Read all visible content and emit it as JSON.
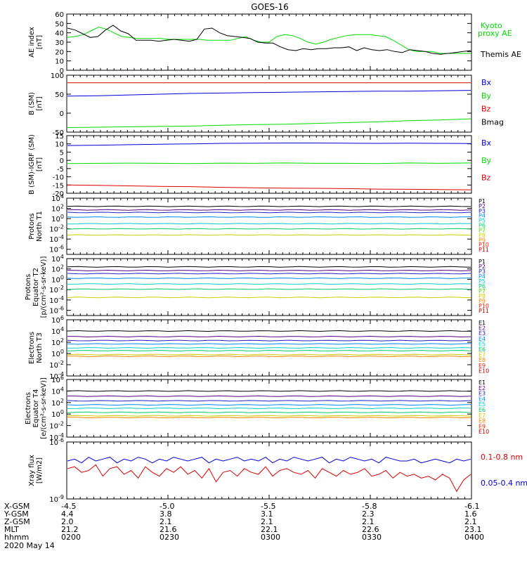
{
  "title": "GOES-16",
  "colors": {
    "black": "#000000",
    "green": "#00dd00",
    "red": "#dd0000",
    "blue": "#0000dd"
  },
  "chart_data": [
    {
      "type": "line",
      "ylabel": [
        "AE index",
        "[nT]"
      ],
      "ylim": [
        0,
        60
      ],
      "yticks": [
        "0",
        "10",
        "20",
        "30",
        "40",
        "50",
        "60"
      ],
      "series": [
        {
          "name": "Kyoto proxy AE",
          "color": "#00dd00",
          "values": [
            35,
            36,
            38,
            42,
            46,
            44,
            40,
            36,
            35,
            34,
            34,
            34,
            34,
            33,
            33,
            33,
            33,
            33,
            32,
            32,
            32,
            32,
            34,
            36,
            32,
            30,
            30,
            36,
            38,
            37,
            34,
            30,
            28,
            30,
            33,
            35,
            37,
            38,
            38,
            38,
            37,
            36,
            32,
            27,
            22,
            20,
            20,
            20,
            18,
            18,
            18,
            18,
            18
          ]
        },
        {
          "name": "Themis AE",
          "color": "#000000",
          "values": [
            45,
            43,
            39,
            35,
            36,
            43,
            48,
            42,
            39,
            32,
            32,
            32,
            31,
            32,
            33,
            32,
            31,
            33,
            44,
            45,
            40,
            37,
            36,
            35,
            34,
            30,
            29,
            29,
            25,
            22,
            21,
            23,
            22,
            23,
            23,
            24,
            24,
            25,
            21,
            24,
            22,
            21,
            22,
            20,
            19,
            22,
            21,
            20,
            18,
            17,
            18,
            19,
            20,
            21
          ]
        }
      ]
    },
    {
      "type": "line",
      "ylabel": [
        "B (SM)",
        "[nT]"
      ],
      "ylim": [
        -50,
        100
      ],
      "yticks": [
        "-50",
        "0",
        "50",
        "100"
      ],
      "series": [
        {
          "name": "Bx",
          "color": "#0000dd",
          "values": [
            45,
            46,
            48,
            50,
            52,
            53,
            54,
            55,
            56,
            57,
            58,
            58,
            59,
            60
          ]
        },
        {
          "name": "By",
          "color": "#00dd00",
          "values": [
            -38,
            -37,
            -36,
            -35,
            -34,
            -32,
            -30,
            -29,
            -27,
            -25,
            -23,
            -20,
            -18,
            -15
          ]
        },
        {
          "name": "Bz",
          "color": "#dd0000",
          "values": [
            80,
            80,
            80,
            80,
            80,
            80,
            80,
            80,
            80,
            80,
            80,
            80,
            80,
            80
          ]
        },
        {
          "name": "Bmag",
          "color": "#000000",
          "values": []
        }
      ]
    },
    {
      "type": "line",
      "ylabel": [
        "B (SM)-IGRF (SM)",
        "[nT]"
      ],
      "ylim": [
        -20,
        15
      ],
      "yticks": [
        "-20",
        "-15",
        "-10",
        "-5",
        "0",
        "5",
        "10",
        "15"
      ],
      "series": [
        {
          "name": "Bx",
          "color": "#0000dd",
          "values": [
            9,
            9.2,
            9.5,
            9.8,
            10,
            10.3,
            10.4,
            10.5,
            10.5,
            10.4,
            10.3,
            10.4,
            10.3,
            10.2
          ]
        },
        {
          "name": "By",
          "color": "#00dd00",
          "values": [
            -2,
            -1.8,
            -1.7,
            -1.8,
            -2,
            -1.7,
            -1.8,
            -1.6,
            -1.8,
            -1.8,
            -2,
            -1.6,
            -1.8,
            -1.6
          ]
        },
        {
          "name": "Bz",
          "color": "#dd0000",
          "values": [
            -15,
            -15.2,
            -15.5,
            -15.8,
            -16,
            -16.4,
            -16.7,
            -16.9,
            -17,
            -17.2,
            -17.5,
            -17.6,
            -17.8,
            -17.9
          ]
        }
      ]
    },
    {
      "type": "line",
      "log": true,
      "ylabel": [
        "Protons",
        "North T1"
      ],
      "ylim_exp": [
        -7,
        4
      ],
      "yticks": [
        "10^-6",
        "10^-4",
        "10^-2",
        "10^0",
        "10^2",
        "10^4"
      ],
      "legend": [
        "P1",
        "P2",
        "P3",
        "P4",
        "P5",
        "P6",
        "P7",
        "P8",
        "P9",
        "P10",
        "P11"
      ],
      "legend_colors": [
        "#000000",
        "#550088",
        "#2222cc",
        "#0088ff",
        "#00cccc",
        "#00cc66",
        "#44dd00",
        "#cccc00",
        "#ee8800",
        "#ee2200",
        "#bb0000"
      ],
      "levels_exp": [
        2.4,
        1.7,
        1.2,
        0.3,
        -1.0,
        -2.0,
        -3.2
      ],
      "level_colors": [
        "#000000",
        "#550088",
        "#2222cc",
        "#0088ff",
        "#00cccc",
        "#00cc66",
        "#cccc00"
      ]
    },
    {
      "type": "line",
      "log": true,
      "ylabel": [
        "Protons",
        "Equator T2",
        "[p/(cm²-s-sr-keV)]"
      ],
      "ylim_exp": [
        -7,
        4
      ],
      "yticks": [
        "10^-6",
        "10^-4",
        "10^-2",
        "10^0",
        "10^2",
        "10^4"
      ],
      "legend": [
        "P1",
        "P2",
        "P3",
        "P4",
        "P5",
        "P6",
        "P7",
        "P8",
        "P9",
        "P10",
        "P11"
      ],
      "legend_colors": [
        "#000000",
        "#550088",
        "#2222cc",
        "#0088ff",
        "#00cccc",
        "#00cc66",
        "#44dd00",
        "#cccc00",
        "#ee8800",
        "#ee2200",
        "#bb0000"
      ],
      "levels_exp": [
        2.4,
        1.7,
        1.1,
        0.2,
        -0.9,
        -1.9,
        -3.5
      ],
      "level_colors": [
        "#000000",
        "#550088",
        "#2222cc",
        "#0088ff",
        "#00cccc",
        "#00cc66",
        "#cccc00"
      ]
    },
    {
      "type": "line",
      "log": true,
      "ylabel": [
        "Electrons",
        "North T3"
      ],
      "ylim_exp": [
        -4,
        6
      ],
      "yticks": [
        "10^-4",
        "10^-2",
        "10^0",
        "10^2",
        "10^4",
        "10^6"
      ],
      "legend": [
        "E1",
        "E2",
        "E3",
        "E4",
        "E5",
        "E6",
        "E7",
        "E8",
        "E9",
        "E10"
      ],
      "legend_colors": [
        "#000000",
        "#550088",
        "#2222cc",
        "#0088ff",
        "#00cccc",
        "#00cc66",
        "#cccc00",
        "#ee8800",
        "#ee2200",
        "#bb0000"
      ],
      "levels_exp": [
        4.0,
        3.0,
        2.3,
        1.7,
        1.0,
        0.5,
        -0.2,
        -0.5
      ],
      "level_colors": [
        "#000000",
        "#550088",
        "#2222cc",
        "#0088ff",
        "#00cccc",
        "#00cc66",
        "#cccc00",
        "#ee8800"
      ]
    },
    {
      "type": "line",
      "log": true,
      "ylabel": [
        "Electrons",
        "Equator T4",
        "[e/(cm²-s-sr-keV)]"
      ],
      "ylim_exp": [
        -4,
        6
      ],
      "yticks": [
        "10^-4",
        "10^-2",
        "10^0",
        "10^2",
        "10^4",
        "10^6"
      ],
      "legend": [
        "E1",
        "E2",
        "E3",
        "E4",
        "E5",
        "E6",
        "E7",
        "E8",
        "E9",
        "E10"
      ],
      "legend_colors": [
        "#000000",
        "#550088",
        "#2222cc",
        "#0088ff",
        "#00cccc",
        "#00cc66",
        "#cccc00",
        "#ee8800",
        "#ee2200",
        "#bb0000"
      ],
      "levels_exp": [
        4.0,
        3.1,
        2.3,
        1.6,
        1.0,
        0.3,
        -0.3,
        -0.6
      ],
      "level_colors": [
        "#000000",
        "#550088",
        "#2222cc",
        "#0088ff",
        "#00cccc",
        "#00cc66",
        "#cccc00",
        "#ee8800"
      ]
    },
    {
      "type": "line",
      "log": true,
      "ylabel": [
        "Xray flux",
        "[W/m2]"
      ],
      "ylim_exp": [
        -9,
        -6
      ],
      "yticks": [
        "10^-9",
        "10^-6"
      ],
      "series": [
        {
          "name": "0.1-0.8 nm",
          "color": "#dd0000",
          "values": [
            -7.4,
            -7.3,
            -7.6,
            -7.5,
            -7.2,
            -7.8,
            -7.4,
            -7.3,
            -7.7,
            -7.5,
            -7.9,
            -7.3,
            -7.6,
            -7.8,
            -7.4,
            -7.6,
            -7.3,
            -7.7,
            -7.5,
            -7.9,
            -7.4,
            -8.1,
            -7.6,
            -7.5,
            -7.8,
            -7.4,
            -7.6,
            -7.7,
            -7.3,
            -7.8,
            -7.5,
            -7.4,
            -7.6,
            -7.7,
            -7.5,
            -7.9,
            -7.4,
            -7.6,
            -7.8,
            -7.5,
            -7.7,
            -7.6,
            -7.4,
            -7.8,
            -7.7,
            -7.5,
            -7.9,
            -7.6,
            -7.8,
            -7.7,
            -7.9,
            -7.8,
            -8.0,
            -7.7,
            -7.9,
            -8.6,
            -8.0,
            -7.7
          ]
        },
        {
          "name": "0.05-0.4 nm",
          "color": "#0000dd",
          "values": [
            -7.0,
            -6.9,
            -7.1,
            -6.8,
            -7.0,
            -6.9,
            -6.8,
            -7.1,
            -6.9,
            -7.0,
            -6.8,
            -6.9,
            -7.1,
            -6.9,
            -7.0,
            -6.8,
            -6.9,
            -7.0,
            -6.9,
            -6.8,
            -7.1,
            -6.9,
            -7.0,
            -6.9,
            -6.8,
            -7.0,
            -6.9,
            -7.0,
            -6.8,
            -7.1,
            -6.9,
            -7.0,
            -6.8,
            -6.9,
            -7.0,
            -6.9,
            -6.8,
            -7.1,
            -6.9,
            -7.0,
            -6.8,
            -6.9,
            -7.0,
            -6.9,
            -7.1,
            -6.8,
            -6.9,
            -7.0,
            -7.0,
            -6.9,
            -7.1,
            -7.0,
            -6.9,
            -7.0,
            -7.1,
            -6.9,
            -7.0,
            -6.9
          ]
        }
      ]
    }
  ],
  "x_axis": {
    "rows": [
      {
        "label": "X-GSM",
        "values": [
          "-4.5",
          "-5.0",
          "-5.5",
          "-5.8",
          "-6.1"
        ]
      },
      {
        "label": "Y-GSM",
        "values": [
          "4.4",
          "3.8",
          "3.1",
          "2.3",
          "1.6"
        ]
      },
      {
        "label": "Z-GSM",
        "values": [
          "2.0",
          "2.1",
          "2.1",
          "2.1",
          "2.1"
        ]
      },
      {
        "label": "MLT",
        "values": [
          "21.2",
          "21.6",
          "22.1",
          "22.6",
          "23.1"
        ]
      },
      {
        "label": "hhmm",
        "values": [
          "0200",
          "0230",
          "0300",
          "0330",
          "0400"
        ]
      }
    ],
    "date": "2020 May 14"
  }
}
